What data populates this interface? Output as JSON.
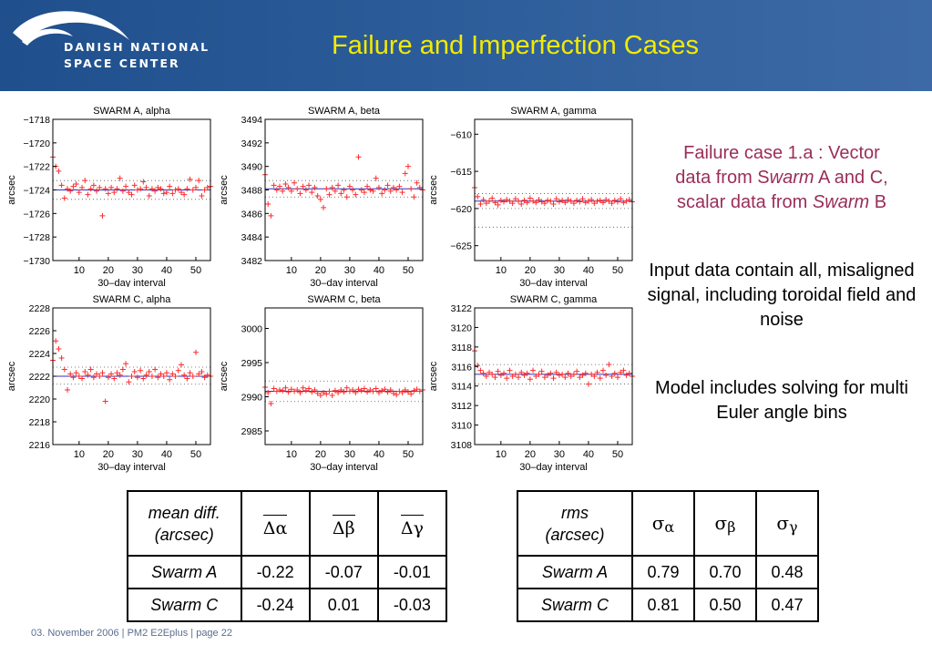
{
  "header": {
    "logo_line1": "DANISH NATIONAL",
    "logo_line2": "SPACE CENTER",
    "title": "Failure and Imperfection Cases"
  },
  "colors": {
    "header_bg": "#2b5c99",
    "title": "#f4ea00",
    "accent_text": "#9a2d58",
    "marker": "#ff2b2b",
    "fit_line": "#3030c0"
  },
  "charts": [
    {
      "type": "scatter",
      "title": "SWARM A, alpha",
      "ylabel": "arcsec",
      "xlabel": "30–day interval",
      "xlim": [
        1,
        55
      ],
      "ylim": [
        -1730,
        -1718
      ],
      "xticks": [
        10,
        20,
        30,
        40,
        50
      ],
      "yticks": [
        -1730,
        -1728,
        -1726,
        -1724,
        -1722,
        -1720,
        -1718
      ],
      "yticklabels": [
        "−1730",
        "−1728",
        "−1726",
        "−1724",
        "−1722",
        "−1720",
        "−1718"
      ],
      "fit": -1724.0,
      "bands": [
        -1723.2,
        -1724.8
      ],
      "y": [
        -1721.2,
        -1722.0,
        -1722.4,
        -1723.6,
        -1724.7,
        -1723.9,
        -1724.1,
        -1723.7,
        -1723.5,
        -1724.2,
        -1723.8,
        -1723.2,
        -1724.4,
        -1723.9,
        -1723.6,
        -1724.1,
        -1723.8,
        -1726.2,
        -1723.9,
        -1724.3,
        -1723.8,
        -1724.2,
        -1723.9,
        -1723.0,
        -1724.1,
        -1723.7,
        -1724.2,
        -1724.4,
        -1723.6,
        -1724.0,
        -1723.9,
        -1723.3,
        -1723.8,
        -1724.5,
        -1723.9,
        -1724.1,
        -1723.8,
        -1723.9,
        -1724.3,
        -1724.2,
        -1723.7,
        -1724.3,
        -1724.0,
        -1723.9,
        -1724.2,
        -1724.4,
        -1723.9,
        -1723.1,
        -1724.0,
        -1723.8,
        -1723.2,
        -1724.5,
        -1724.0,
        -1723.8,
        -1723.7
      ]
    },
    {
      "type": "scatter",
      "title": "SWARM A, beta",
      "ylabel": "arcsec",
      "xlabel": "30–day interval",
      "xlim": [
        1,
        55
      ],
      "ylim": [
        3482,
        3494
      ],
      "xticks": [
        10,
        20,
        30,
        40,
        50
      ],
      "yticks": [
        3482,
        3484,
        3486,
        3488,
        3490,
        3492,
        3494
      ],
      "yticklabels": [
        "3482",
        "3484",
        "3486",
        "3488",
        "3490",
        "3492",
        "3494"
      ],
      "fit": 3488.1,
      "bands": [
        3488.8,
        3487.4
      ],
      "y": [
        3489.3,
        3486.8,
        3485.8,
        3488.4,
        3488.0,
        3488.3,
        3487.9,
        3488.5,
        3488.2,
        3487.9,
        3488.6,
        3488.1,
        3487.7,
        3488.3,
        3488.0,
        3488.4,
        3487.8,
        3488.2,
        3487.5,
        3487.2,
        3486.5,
        3488.1,
        3487.6,
        3488.2,
        3487.9,
        3488.4,
        3487.7,
        3488.0,
        3487.4,
        3488.3,
        3488.0,
        3487.6,
        3490.8,
        3488.0,
        3487.8,
        3488.3,
        3488.0,
        3487.9,
        3489.0,
        3488.2,
        3487.7,
        3488.0,
        3488.4,
        3487.9,
        3488.2,
        3488.0,
        3488.3,
        3487.8,
        3489.4,
        3490.0,
        3488.1,
        3487.4,
        3488.6,
        3488.2,
        3488.0
      ]
    },
    {
      "type": "scatter",
      "title": "SWARM A, gamma",
      "ylabel": "arcsec",
      "xlabel": "30–day interval",
      "xlim": [
        1,
        55
      ],
      "ylim": [
        -627,
        -608
      ],
      "xticks": [
        10,
        20,
        30,
        40,
        50
      ],
      "yticks": [
        -625,
        -620,
        -615,
        -610
      ],
      "yticklabels": [
        "−625",
        "−620",
        "−615",
        "−610"
      ],
      "fit": -619.0,
      "bands": [
        -618.0,
        -620.0,
        -622.5
      ],
      "y": [
        -617.2,
        -618.4,
        -619.4,
        -618.8,
        -619.3,
        -619.0,
        -618.6,
        -619.2,
        -619.5,
        -618.9,
        -619.1,
        -618.8,
        -619.0,
        -619.3,
        -618.7,
        -619.0,
        -619.4,
        -618.9,
        -619.2,
        -618.6,
        -619.0,
        -619.2,
        -618.8,
        -619.1,
        -619.3,
        -618.9,
        -619.0,
        -619.4,
        -618.7,
        -619.1,
        -618.9,
        -619.2,
        -618.8,
        -619.0,
        -619.3,
        -618.9,
        -619.1,
        -618.7,
        -619.2,
        -619.0,
        -618.8,
        -619.3,
        -619.0,
        -618.9,
        -619.2,
        -618.8,
        -619.0,
        -619.3,
        -618.9,
        -619.1,
        -618.7,
        -619.2,
        -619.0,
        -618.8,
        -619.1
      ]
    },
    {
      "type": "scatter",
      "title": "SWARM C, alpha",
      "ylabel": "arcsec",
      "xlabel": "30–day interval",
      "xlim": [
        1,
        55
      ],
      "ylim": [
        2216,
        2228
      ],
      "xticks": [
        10,
        20,
        30,
        40,
        50
      ],
      "yticks": [
        2216,
        2218,
        2220,
        2222,
        2224,
        2226,
        2228
      ],
      "yticklabels": [
        "2216",
        "2218",
        "2220",
        "2222",
        "2224",
        "2226",
        "2228"
      ],
      "fit": 2222.0,
      "bands": [
        2222.8,
        2221.3
      ],
      "y": [
        2223.4,
        2225.1,
        2224.4,
        2223.6,
        2222.6,
        2220.8,
        2222.2,
        2221.9,
        2222.3,
        2222.0,
        2221.8,
        2222.4,
        2222.1,
        2222.6,
        2221.9,
        2222.2,
        2222.0,
        2222.3,
        2219.8,
        2221.9,
        2222.2,
        2221.8,
        2222.3,
        2222.1,
        2222.6,
        2223.1,
        2221.5,
        2222.0,
        2222.4,
        2221.9,
        2222.5,
        2221.8,
        2222.1,
        2222.4,
        2222.0,
        2222.6,
        2221.9,
        2222.2,
        2222.0,
        2222.3,
        2221.7,
        2222.2,
        2222.0,
        2222.5,
        2223.0,
        2222.1,
        2221.8,
        2222.3,
        2222.0,
        2224.1,
        2222.2,
        2222.4,
        2221.9,
        2222.1,
        2222.0
      ]
    },
    {
      "type": "scatter",
      "title": "SWARM C, beta",
      "ylabel": "arcsec",
      "xlabel": "30–day interval",
      "xlim": [
        1,
        55
      ],
      "ylim": [
        2983,
        3003
      ],
      "xticks": [
        10,
        20,
        30,
        40,
        50
      ],
      "yticks": [
        2985,
        2990,
        2995,
        3000
      ],
      "yticklabels": [
        "2985",
        "2990",
        "2995",
        "3000"
      ],
      "fit": 2990.8,
      "bands": [
        2992.3,
        2989.3
      ],
      "y": [
        2991.4,
        2990.6,
        2989.0,
        2991.2,
        2990.8,
        2991.0,
        2990.9,
        2991.3,
        2990.7,
        2991.1,
        2990.8,
        2991.0,
        2990.6,
        2991.3,
        2990.9,
        2991.2,
        2990.7,
        2991.0,
        2990.5,
        2990.2,
        2990.6,
        2990.4,
        2990.8,
        2990.2,
        2990.9,
        2990.6,
        2991.0,
        2990.7,
        2991.3,
        2990.8,
        2991.0,
        2990.6,
        2991.1,
        2990.9,
        2991.2,
        2990.7,
        2991.0,
        2990.8,
        2991.2,
        2990.6,
        2990.9,
        2991.1,
        2990.7,
        2991.0,
        2990.5,
        2990.3,
        2990.8,
        2990.6,
        2991.0,
        2990.7,
        2990.4,
        2990.9,
        2991.1,
        2990.8,
        2991.0
      ]
    },
    {
      "type": "scatter",
      "title": "SWARM C, gamma",
      "ylabel": "arcsec",
      "xlabel": "30–day interval",
      "xlim": [
        1,
        55
      ],
      "ylim": [
        3108,
        3122
      ],
      "xticks": [
        10,
        20,
        30,
        40,
        50
      ],
      "yticks": [
        3108,
        3110,
        3112,
        3114,
        3116,
        3118,
        3120,
        3122
      ],
      "yticklabels": [
        "3108",
        "3110",
        "3112",
        "3114",
        "3116",
        "3118",
        "3120",
        "3122"
      ],
      "fit": 3115.2,
      "bands": [
        3116.2,
        3114.2
      ],
      "y": [
        3117.6,
        3116.1,
        3115.6,
        3115.3,
        3115.0,
        3115.4,
        3115.2,
        3114.9,
        3115.5,
        3115.1,
        3115.3,
        3114.8,
        3115.6,
        3115.0,
        3115.2,
        3114.9,
        3115.4,
        3115.1,
        3115.3,
        3114.7,
        3115.6,
        3115.0,
        3115.2,
        3115.5,
        3114.9,
        3115.1,
        3115.3,
        3114.8,
        3115.4,
        3115.1,
        3115.2,
        3114.9,
        3115.3,
        3115.0,
        3115.2,
        3115.5,
        3114.9,
        3115.1,
        3115.3,
        3114.2,
        3115.2,
        3115.0,
        3115.4,
        3114.8,
        3115.6,
        3115.1,
        3116.2,
        3115.0,
        3115.3,
        3114.9,
        3115.4,
        3115.6,
        3115.1,
        3115.3,
        3115.0
      ]
    }
  ],
  "side": {
    "failure_l1": "Failure case 1.a : Vector",
    "failure_l2a": "data from S",
    "failure_l2b": "warm",
    "failure_l2c": " A and C,",
    "failure_l3a": "scalar data from ",
    "failure_l3b": "Swarm",
    "failure_l3c": " B",
    "input_text": "Input data contain all, misaligned signal, including toroidal field and noise",
    "model_text": "Model includes solving for multi Euler angle bins"
  },
  "table_mean": {
    "header_l1": "mean diff.",
    "header_l2": "(arcsec)",
    "cols": [
      "Δα",
      "Δβ",
      "Δγ"
    ],
    "rows": [
      {
        "name": "Swarm A",
        "values": [
          "-0.22",
          "-0.07",
          "-0.01"
        ]
      },
      {
        "name": "Swarm C",
        "values": [
          "-0.24",
          "0.01",
          "-0.03"
        ]
      }
    ]
  },
  "table_rms": {
    "header_l1": "rms",
    "header_l2": "(arcsec)",
    "cols": [
      {
        "base": "σ",
        "sub": "α"
      },
      {
        "base": "σ",
        "sub": "β"
      },
      {
        "base": "σ",
        "sub": "γ"
      }
    ],
    "rows": [
      {
        "name": "Swarm A",
        "values": [
          "0.79",
          "0.70",
          "0.48"
        ]
      },
      {
        "name": "Swarm C",
        "values": [
          "0.81",
          "0.50",
          "0.47"
        ]
      }
    ]
  },
  "footer": "03. November  2006 | PM2 E2Eplus | page 22"
}
